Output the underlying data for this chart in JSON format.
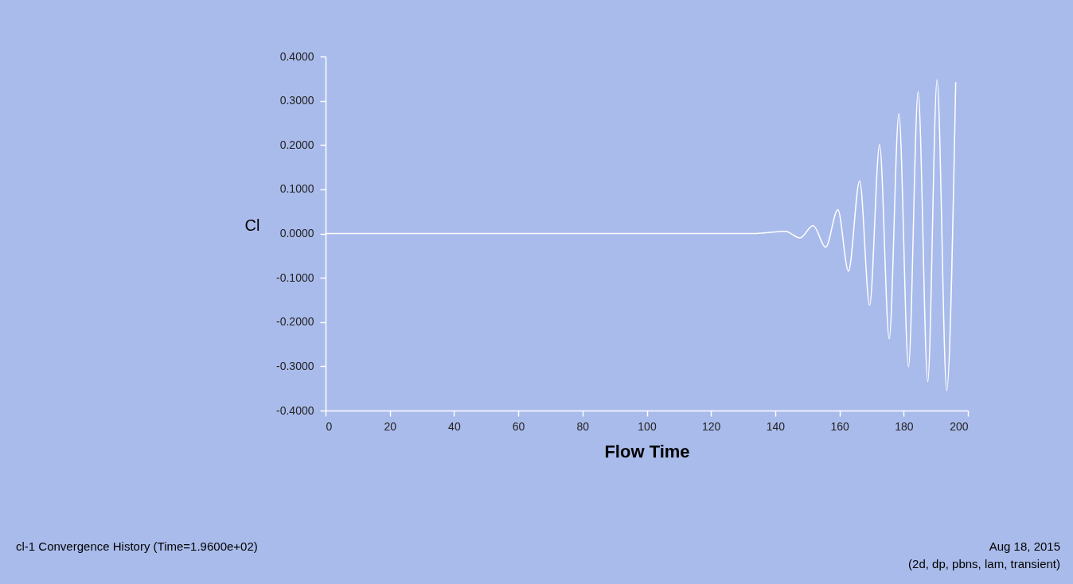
{
  "chart_data": {
    "type": "line",
    "xlabel": "Flow Time",
    "ylabel": "Cl",
    "x": [
      0,
      100,
      134,
      143.2,
      147.7,
      151.8,
      155.7,
      159.5,
      162.8,
      166.3,
      169.4,
      172.5,
      175.5,
      178.5,
      181.5,
      184.5,
      187.5,
      190.4,
      193.4,
      196.2
    ],
    "series": [
      {
        "color": "#ffffff",
        "values": [
          0,
          0,
          0,
          0.005,
          -0.01,
          0.018,
          -0.031,
          0.054,
          -0.085,
          0.119,
          -0.162,
          0.201,
          -0.238,
          0.271,
          -0.301,
          0.321,
          -0.335,
          0.348,
          -0.355,
          0.342
        ]
      }
    ],
    "xlim": [
      0,
      200
    ],
    "xticks": [
      0,
      20,
      40,
      60,
      80,
      100,
      120,
      140,
      160,
      180,
      200
    ],
    "ylim": [
      -0.4,
      0.4
    ],
    "yticks": [
      {
        "value": -0.4,
        "label": "-0.4000"
      },
      {
        "value": -0.3,
        "label": "-0.3000"
      },
      {
        "value": -0.2,
        "label": "-0.2000"
      },
      {
        "value": -0.1,
        "label": "-0.1000"
      },
      {
        "value": 0,
        "label": "0.0000"
      },
      {
        "value": 0.1,
        "label": "0.1000"
      },
      {
        "value": 0.2,
        "label": "0.2000"
      },
      {
        "value": 0.3,
        "label": "0.3000"
      },
      {
        "value": 0.4,
        "label": "0.4000"
      }
    ],
    "grid": false,
    "marker": "none",
    "line_style": "solid",
    "annotations": [
      "cl-1 Convergence History  (Time=1.9600e+02)",
      "Aug 18, 2015",
      "(2d, dp, pbns, lam, transient)"
    ]
  }
}
